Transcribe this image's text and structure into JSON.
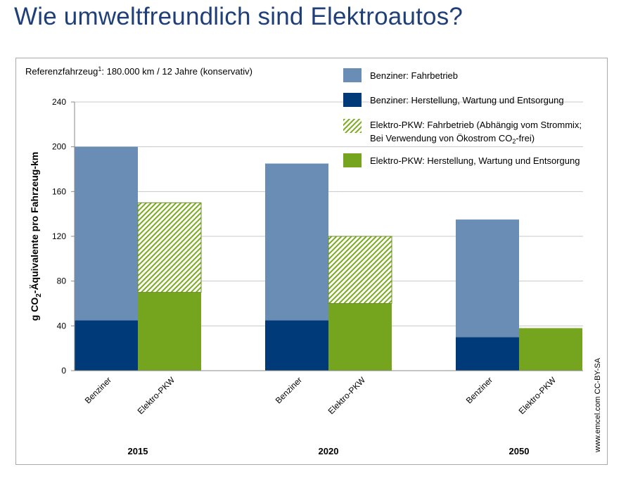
{
  "page": {
    "title": "Wie umweltfreundlich sind Elektroautos?"
  },
  "chart": {
    "reference_prefix": "Referenzfahrzeug",
    "reference_sup": "1",
    "reference_suffix": ": 180.000 km / 12 Jahre (konservativ)",
    "ylabel_prefix": "g CO",
    "ylabel_sub": "2",
    "ylabel_suffix": "-Äquivalente pro Fahrzeug-km",
    "credit": "www.emcel.com CC-BY-SA",
    "legend": [
      {
        "line1": "Benziner: Fahrbetrieb",
        "line2": "",
        "sub_text": "",
        "line2_suffix": "",
        "color": "#6a8db5",
        "pattern": false
      },
      {
        "line1": "Benziner: Herstellung, Wartung und Entsorgung",
        "line2": "",
        "sub_text": "",
        "line2_suffix": "",
        "color": "#003a78",
        "pattern": false
      },
      {
        "line1": "Elektro-PKW: Fahrbetrieb (Abhängig vom Strommix;",
        "line2": "Bei Verwendung von Ökostrom CO",
        "sub_text": "2",
        "line2_suffix": "-frei)",
        "color": "#7aaa1e",
        "pattern": true
      },
      {
        "line1": "Elektro-PKW: Herstellung, Wartung und Entsorgung",
        "line2": "",
        "sub_text": "",
        "line2_suffix": "",
        "color": "#75a51e",
        "pattern": false
      }
    ]
  },
  "chart_data": {
    "type": "bar",
    "stacked": true,
    "ylim": [
      0,
      240
    ],
    "yticks": [
      0,
      40,
      80,
      120,
      160,
      200,
      240
    ],
    "grid": true,
    "legend_position": "top-right",
    "groups": [
      {
        "year": "2015",
        "bars": [
          {
            "label": "Benziner",
            "segments": [
              45,
              155
            ]
          },
          {
            "label": "Elektro-PKW",
            "segments": [
              70,
              80
            ]
          }
        ]
      },
      {
        "year": "2020",
        "bars": [
          {
            "label": "Benziner",
            "segments": [
              45,
              140
            ]
          },
          {
            "label": "Elektro-PKW",
            "segments": [
              60,
              60
            ]
          }
        ]
      },
      {
        "year": "2050",
        "bars": [
          {
            "label": "Benziner",
            "segments": [
              30,
              105
            ]
          },
          {
            "label": "Elektro-PKW",
            "segments": [
              38,
              0
            ]
          }
        ]
      }
    ],
    "segment_series": {
      "Benziner": [
        "Benziner: Herstellung, Wartung und Entsorgung",
        "Benziner: Fahrbetrieb"
      ],
      "Elektro-PKW": [
        "Elektro-PKW: Herstellung, Wartung und Entsorgung",
        "Elektro-PKW: Fahrbetrieb"
      ]
    },
    "colors": {
      "benziner_fahrbetrieb": "#6a8db5",
      "benziner_herstellung": "#003a78",
      "elektro_fahrbetrieb": "#7aaa1e",
      "elektro_herstellung": "#75a51e"
    }
  }
}
